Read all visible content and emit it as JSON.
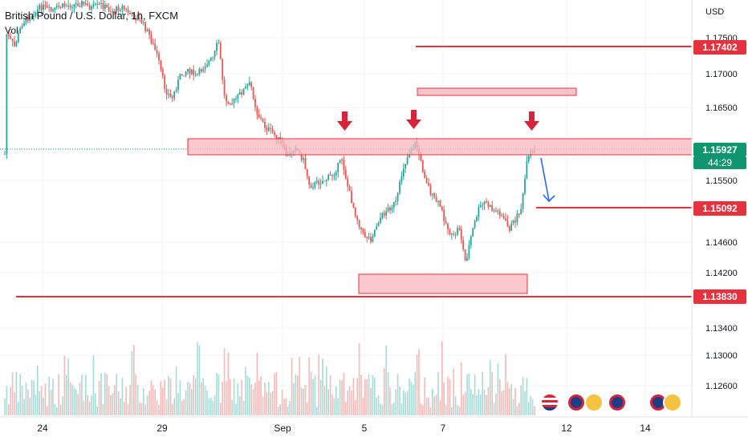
{
  "header": {
    "title": "British Pound / U.S. Dollar, 1h, FXCM",
    "vol_label": "Vol"
  },
  "price_axis": {
    "currency": "USD",
    "ticks": [
      "1.17500",
      "1.17000",
      "1.16500",
      "1.15500",
      "1.14600",
      "1.14200",
      "1.13400",
      "1.13000",
      "1.12600"
    ]
  },
  "time_axis": {
    "labels": [
      "24",
      "29",
      "Sep",
      "5",
      "7",
      "12",
      "14"
    ]
  },
  "price_badges": {
    "level_top": "1.17402",
    "current_price": "1.15927",
    "countdown": "44:29",
    "level_target": "1.15092",
    "level_bottom": "1.13830"
  },
  "colors": {
    "up": "#26a69a",
    "down": "#ef5350",
    "level_line": "#e5323f",
    "zone_fill": "#f7b7bd",
    "arrow_blue": "#2962ff",
    "current_green": "#10966f"
  },
  "event_icons": [
    "us-flag-icon",
    "uk-flag-icon",
    "eu-flag-icon",
    "uk-flag-icon",
    "uk-flag-icon",
    "eu-flag-icon"
  ]
}
